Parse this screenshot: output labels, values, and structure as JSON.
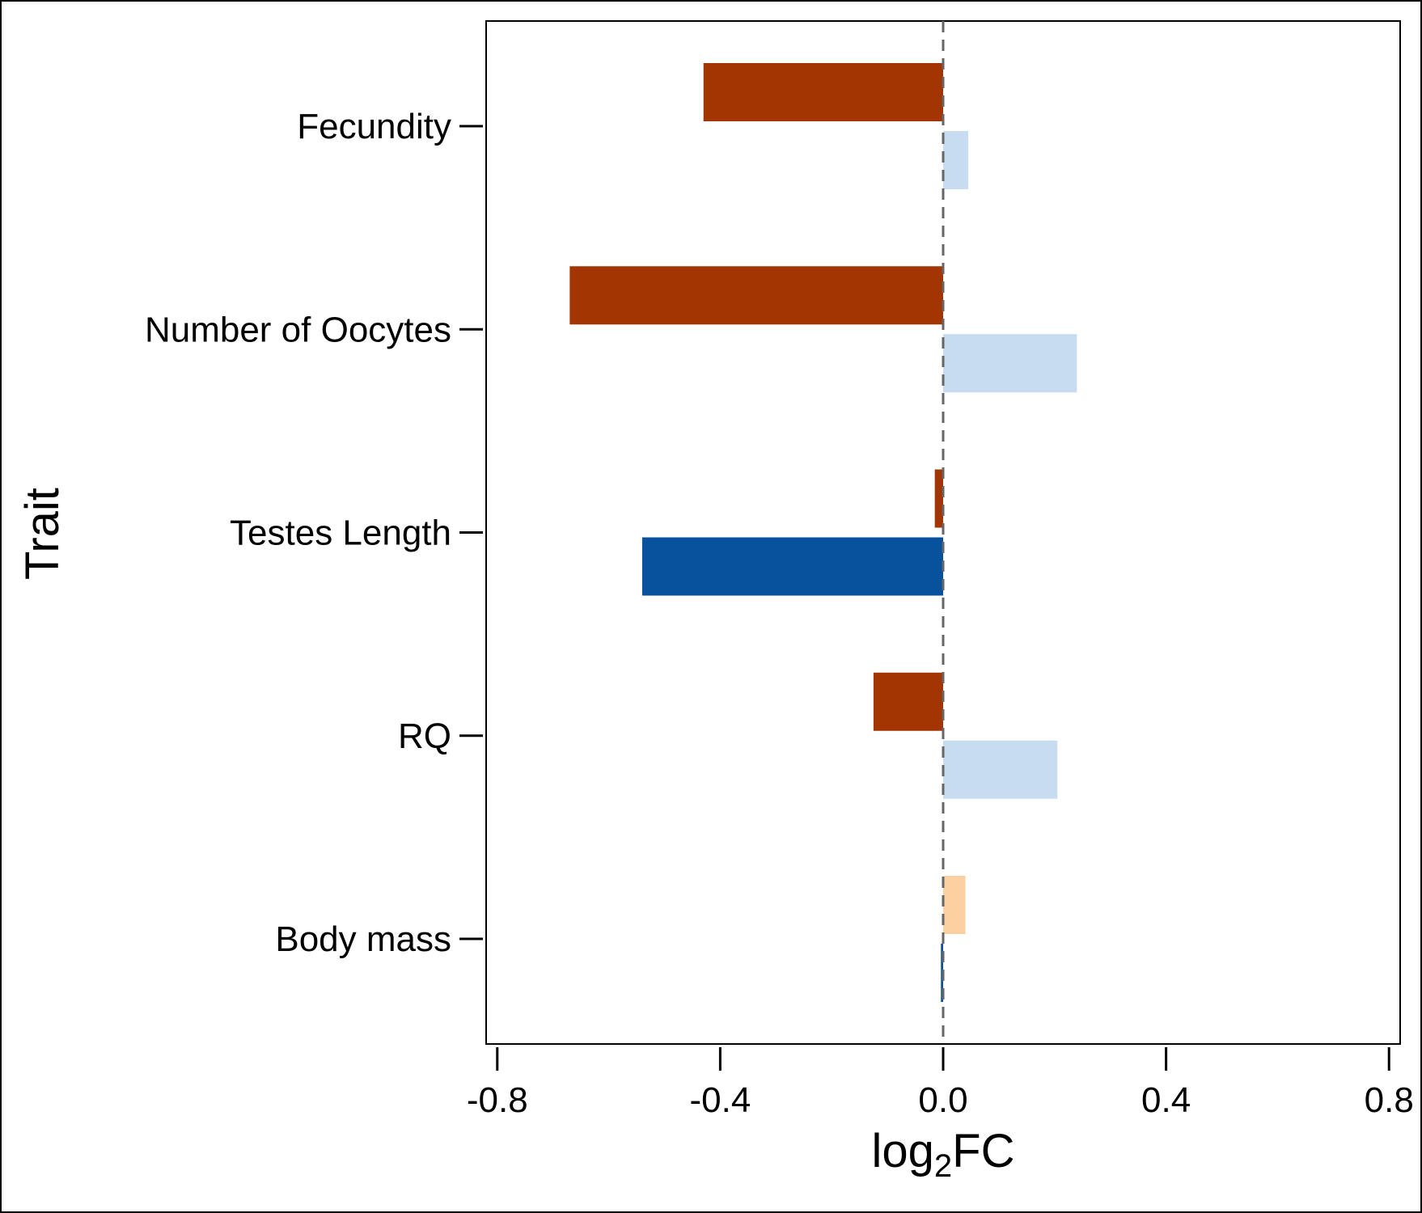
{
  "chart_data": {
    "type": "bar",
    "orientation": "horizontal",
    "xlabel": "log₂FC",
    "ylabel": "Trait",
    "xlim": [
      -0.82,
      0.82
    ],
    "xticks": [
      -0.8,
      -0.4,
      0.0,
      0.4,
      0.8
    ],
    "xtick_labels": [
      "-0.8",
      "-0.4",
      "0.0",
      "0.4",
      "0.8"
    ],
    "categories": [
      "Fecundity",
      "Number of Oocytes",
      "Testes Length",
      "RQ",
      "Body mass"
    ],
    "reference_line": {
      "x": 0,
      "style": "dashed",
      "color": "#666666"
    },
    "grid": false,
    "legend": "none",
    "bars": [
      {
        "category": "Fecundity",
        "position": "upper",
        "value": -0.43,
        "color": "#A33503"
      },
      {
        "category": "Fecundity",
        "position": "lower",
        "value": 0.045,
        "color": "#C7DCF0"
      },
      {
        "category": "Number of Oocytes",
        "position": "upper",
        "value": -0.67,
        "color": "#A33503"
      },
      {
        "category": "Number of Oocytes",
        "position": "lower",
        "value": 0.24,
        "color": "#C7DCF0"
      },
      {
        "category": "Testes Length",
        "position": "upper",
        "value": -0.015,
        "color": "#A33503"
      },
      {
        "category": "Testes Length",
        "position": "lower",
        "value": -0.54,
        "color": "#08519C"
      },
      {
        "category": "RQ",
        "position": "upper",
        "value": -0.125,
        "color": "#A33503"
      },
      {
        "category": "RQ",
        "position": "lower",
        "value": 0.205,
        "color": "#C7DCF0"
      },
      {
        "category": "Body mass",
        "position": "upper",
        "value": 0.04,
        "color": "#FDD0A2"
      },
      {
        "category": "Body mass",
        "position": "lower",
        "value": -0.004,
        "color": "#08519C"
      }
    ]
  }
}
